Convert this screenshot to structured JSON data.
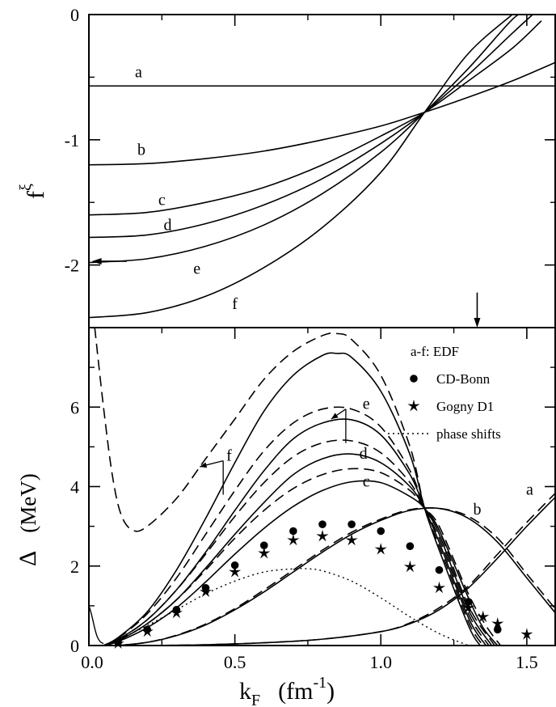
{
  "chart_data": [
    {
      "type": "line",
      "panel": "top",
      "ylabel": "f",
      "ylabel_superscript": "ξ",
      "xlim": [
        0.0,
        1.6
      ],
      "ylim": [
        -2.5,
        0
      ],
      "yticks": [
        "0",
        "-1",
        "-2"
      ],
      "series": [
        {
          "label": "a",
          "x": [
            0.0,
            0.4,
            0.8,
            1.2,
            1.6
          ],
          "y": [
            -0.57,
            -0.57,
            -0.57,
            -0.57,
            -0.57
          ]
        },
        {
          "label": "b",
          "x": [
            0.0,
            0.2,
            0.4,
            0.6,
            0.8,
            1.0,
            1.15,
            1.3,
            1.45,
            1.6
          ],
          "y": [
            -1.2,
            -1.19,
            -1.15,
            -1.09,
            -1.0,
            -0.89,
            -0.78,
            -0.66,
            -0.53,
            -0.38
          ]
        },
        {
          "label": "c",
          "x": [
            0.0,
            0.2,
            0.4,
            0.6,
            0.8,
            1.0,
            1.15,
            1.3,
            1.45,
            1.55
          ],
          "y": [
            -1.6,
            -1.58,
            -1.5,
            -1.38,
            -1.2,
            -0.97,
            -0.78,
            -0.53,
            -0.27,
            -0.05
          ]
        },
        {
          "label": "d",
          "x": [
            0.0,
            0.2,
            0.4,
            0.6,
            0.8,
            1.0,
            1.15,
            1.3,
            1.45,
            1.52
          ],
          "y": [
            -1.78,
            -1.76,
            -1.67,
            -1.52,
            -1.31,
            -1.03,
            -0.78,
            -0.48,
            -0.15,
            0.0
          ]
        },
        {
          "label": "e",
          "x": [
            0.0,
            0.2,
            0.4,
            0.6,
            0.8,
            1.0,
            1.15,
            1.3,
            1.45,
            1.49
          ],
          "y": [
            -1.98,
            -1.95,
            -1.85,
            -1.68,
            -1.43,
            -1.1,
            -0.78,
            -0.43,
            -0.04,
            0.0
          ]
        },
        {
          "label": "f",
          "x": [
            0.0,
            0.2,
            0.4,
            0.6,
            0.8,
            1.0,
            1.15,
            1.3,
            1.45
          ],
          "y": [
            -2.42,
            -2.38,
            -2.25,
            -2.02,
            -1.7,
            -1.26,
            -0.78,
            -0.31,
            0.0
          ]
        }
      ],
      "annotations": [
        {
          "type": "arrow",
          "x_from": 0.13,
          "x_to": 0.01,
          "y": -1.97,
          "points_to": "y-axis"
        },
        {
          "type": "arrow",
          "x": 1.33,
          "y_from": -2.22,
          "y_to": -2.5,
          "points_to": "x-axis"
        }
      ]
    },
    {
      "type": "line",
      "panel": "bottom",
      "xlabel": "k",
      "xlabel_subscript": "F",
      "xlabel_unit": "(fm",
      "xlabel_unit_superscript": "-1",
      "xlabel_unit_close": ")",
      "ylabel": "Δ",
      "ylabel_unit": "(MeV)",
      "xlim": [
        0.0,
        1.6
      ],
      "ylim": [
        0,
        8
      ],
      "xticks": [
        "0.0",
        "0.5",
        "1.0",
        "1.5"
      ],
      "yticks": [
        "0",
        "2",
        "4",
        "6"
      ],
      "curve_labels": [
        "a",
        "b",
        "c",
        "d",
        "e",
        "f"
      ],
      "legend": {
        "position": "top-right",
        "entries": [
          {
            "marker": "",
            "text": "a-f:  EDF"
          },
          {
            "marker": "●",
            "text": "CD-Bonn"
          },
          {
            "marker": "★",
            "text": "Gogny D1"
          },
          {
            "marker": "dotted",
            "text": "phase shifts"
          }
        ]
      },
      "series_solid": [
        {
          "label": "a",
          "x": [
            0.2,
            0.4,
            0.6,
            0.8,
            1.0,
            1.1,
            1.2,
            1.3,
            1.4,
            1.5,
            1.6
          ],
          "y": [
            0.0,
            0.02,
            0.07,
            0.16,
            0.35,
            0.55,
            0.9,
            1.45,
            2.2,
            3.0,
            3.75
          ]
        },
        {
          "label": "b",
          "x": [
            0.1,
            0.2,
            0.3,
            0.4,
            0.5,
            0.6,
            0.7,
            0.8,
            0.9,
            1.0,
            1.1,
            1.2,
            1.3,
            1.4,
            1.5,
            1.6
          ],
          "y": [
            0.0,
            0.08,
            0.25,
            0.52,
            0.9,
            1.35,
            1.85,
            2.35,
            2.8,
            3.15,
            3.4,
            3.45,
            3.2,
            2.6,
            1.7,
            0.8
          ]
        },
        {
          "label": "c",
          "x": [
            0.05,
            0.1,
            0.2,
            0.3,
            0.4,
            0.5,
            0.6,
            0.7,
            0.8,
            0.9,
            1.0,
            1.1,
            1.15,
            1.2,
            1.3,
            1.35,
            1.4
          ],
          "y": [
            0.0,
            0.1,
            0.45,
            0.95,
            1.6,
            2.3,
            2.95,
            3.5,
            3.9,
            4.12,
            4.1,
            3.75,
            3.45,
            2.9,
            1.2,
            0.45,
            0.0
          ]
        },
        {
          "label": "d",
          "x": [
            0.05,
            0.1,
            0.2,
            0.3,
            0.4,
            0.5,
            0.6,
            0.7,
            0.8,
            0.9,
            1.0,
            1.1,
            1.15,
            1.2,
            1.3,
            1.38
          ],
          "y": [
            0.0,
            0.12,
            0.55,
            1.15,
            1.95,
            2.8,
            3.6,
            4.3,
            4.7,
            4.82,
            4.6,
            4.0,
            3.45,
            2.8,
            0.9,
            0.0
          ]
        },
        {
          "label": "e",
          "x": [
            0.05,
            0.1,
            0.2,
            0.3,
            0.4,
            0.5,
            0.6,
            0.7,
            0.8,
            0.9,
            1.0,
            1.1,
            1.15,
            1.2,
            1.3,
            1.36
          ],
          "y": [
            0.0,
            0.15,
            0.65,
            1.4,
            2.35,
            3.4,
            4.4,
            5.2,
            5.6,
            5.68,
            5.3,
            4.3,
            3.45,
            2.6,
            0.7,
            0.0
          ]
        },
        {
          "label": "f",
          "x": [
            0.05,
            0.1,
            0.2,
            0.3,
            0.4,
            0.5,
            0.6,
            0.7,
            0.8,
            0.85,
            0.9,
            1.0,
            1.1,
            1.15,
            1.2,
            1.3,
            1.34
          ],
          "y": [
            0.0,
            0.2,
            0.85,
            1.9,
            3.2,
            4.6,
            5.9,
            6.8,
            7.3,
            7.35,
            7.25,
            6.4,
            4.8,
            3.45,
            2.4,
            0.5,
            0.0
          ]
        }
      ],
      "series_dashed": [
        {
          "label": "a",
          "x": [
            0.2,
            0.4,
            0.6,
            0.8,
            1.0,
            1.1,
            1.2,
            1.3,
            1.4,
            1.5,
            1.6
          ],
          "y": [
            0.0,
            0.02,
            0.07,
            0.16,
            0.35,
            0.57,
            0.95,
            1.5,
            2.3,
            3.1,
            3.85
          ]
        },
        {
          "label": "b",
          "x": [
            0.1,
            0.2,
            0.3,
            0.4,
            0.5,
            0.6,
            0.7,
            0.8,
            0.9,
            1.0,
            1.1,
            1.2,
            1.3,
            1.4,
            1.5,
            1.6
          ],
          "y": [
            0.0,
            0.08,
            0.26,
            0.54,
            0.93,
            1.4,
            1.9,
            2.4,
            2.85,
            3.18,
            3.42,
            3.45,
            3.25,
            2.7,
            1.8,
            0.9
          ]
        },
        {
          "label": "c",
          "x": [
            0.05,
            0.1,
            0.2,
            0.3,
            0.4,
            0.5,
            0.6,
            0.7,
            0.8,
            0.9,
            1.0,
            1.1,
            1.15,
            1.2,
            1.3,
            1.36,
            1.41
          ],
          "y": [
            0.0,
            0.12,
            0.55,
            1.15,
            1.9,
            2.7,
            3.4,
            3.95,
            4.3,
            4.45,
            4.35,
            3.9,
            3.45,
            3.0,
            1.3,
            0.5,
            0.0
          ]
        },
        {
          "label": "d",
          "x": [
            0.05,
            0.1,
            0.2,
            0.3,
            0.4,
            0.5,
            0.6,
            0.7,
            0.8,
            0.9,
            1.0,
            1.1,
            1.15,
            1.2,
            1.3,
            1.39
          ],
          "y": [
            0.0,
            0.14,
            0.65,
            1.4,
            2.3,
            3.25,
            4.1,
            4.75,
            5.1,
            5.15,
            4.85,
            4.1,
            3.45,
            2.9,
            1.0,
            0.0
          ]
        },
        {
          "label": "e",
          "x": [
            0.05,
            0.1,
            0.2,
            0.3,
            0.4,
            0.5,
            0.6,
            0.7,
            0.8,
            0.9,
            1.0,
            1.1,
            1.15,
            1.2,
            1.3,
            1.37
          ],
          "y": [
            0.0,
            0.18,
            0.8,
            1.7,
            2.8,
            3.9,
            4.9,
            5.6,
            5.95,
            5.95,
            5.5,
            4.4,
            3.45,
            2.7,
            0.8,
            0.0
          ]
        },
        {
          "label": "f",
          "x": [
            0.02,
            0.05,
            0.08,
            0.11,
            0.15,
            0.2,
            0.3,
            0.4,
            0.5,
            0.6,
            0.7,
            0.8,
            0.85,
            0.9,
            1.0,
            1.1,
            1.15,
            1.2,
            1.3,
            1.35
          ],
          "y": [
            8.0,
            6.0,
            4.3,
            3.3,
            2.9,
            3.0,
            3.7,
            4.7,
            5.7,
            6.7,
            7.4,
            7.8,
            7.85,
            7.7,
            6.8,
            5.0,
            3.45,
            2.5,
            0.6,
            0.0
          ]
        }
      ],
      "phase_shifts": {
        "x": [
          0.05,
          0.1,
          0.2,
          0.3,
          0.4,
          0.5,
          0.6,
          0.7,
          0.75,
          0.8,
          0.9,
          1.0,
          1.1,
          1.2,
          1.3
        ],
        "y": [
          0.0,
          0.15,
          0.5,
          0.9,
          1.3,
          1.62,
          1.85,
          1.93,
          1.93,
          1.88,
          1.62,
          1.2,
          0.72,
          0.3,
          0.0
        ]
      },
      "cd_bonn": {
        "x": [
          0.1,
          0.2,
          0.3,
          0.4,
          0.5,
          0.6,
          0.7,
          0.8,
          0.9,
          1.0,
          1.1,
          1.2,
          1.3,
          1.4
        ],
        "y": [
          0.08,
          0.4,
          0.9,
          1.45,
          2.02,
          2.52,
          2.88,
          3.05,
          3.05,
          2.88,
          2.5,
          1.9,
          1.1,
          0.4
        ]
      },
      "gogny_d1": {
        "x": [
          0.1,
          0.2,
          0.3,
          0.4,
          0.5,
          0.6,
          0.7,
          0.8,
          0.9,
          1.0,
          1.1,
          1.2,
          1.3,
          1.35,
          1.4,
          1.5
        ],
        "y": [
          0.05,
          0.35,
          0.82,
          1.35,
          1.85,
          2.32,
          2.65,
          2.75,
          2.65,
          2.42,
          1.98,
          1.45,
          0.95,
          0.72,
          0.55,
          0.28
        ]
      },
      "annotations": [
        {
          "type": "arrow",
          "label": "e",
          "x_from": 0.88,
          "y_from": 5.95,
          "x_to": 0.83,
          "y_to": 5.7
        },
        {
          "type": "arrow",
          "label": "f",
          "x_from": 0.46,
          "y_from": 4.65,
          "x_to": 0.38,
          "y_to": 4.5
        }
      ]
    }
  ]
}
